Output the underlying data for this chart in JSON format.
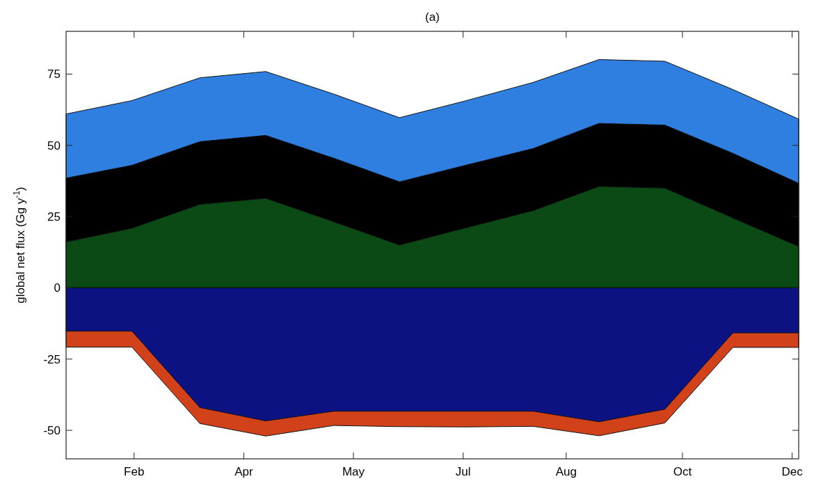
{
  "chart_data": {
    "type": "area",
    "title": "(a)",
    "ylabel": "global net flux (Gg y$^{-1}$)",
    "x": [
      "--01-15",
      "--02-14",
      "--03-17",
      "--04-16",
      "--05-17",
      "--06-16",
      "--07-16",
      "--08-16",
      "--09-15",
      "--10-15",
      "--11-15",
      "--12-15"
    ],
    "xlim": [
      "--01-15",
      "--12-15"
    ],
    "xticks": [
      {
        "value": "--02-15",
        "label": "Feb"
      },
      {
        "value": "--04-06",
        "label": "Apr"
      },
      {
        "value": "--05-26",
        "label": "May"
      },
      {
        "value": "--07-15",
        "label": "Jul"
      },
      {
        "value": "--08-31",
        "label": "Aug"
      },
      {
        "value": "--10-23",
        "label": "Oct"
      },
      {
        "value": "--12-12",
        "label": "Dec"
      }
    ],
    "ylim": [
      -60,
      90
    ],
    "yticks": [
      -50,
      -25,
      0,
      25,
      50,
      75
    ],
    "series": [
      {
        "color": "#2f7fe0",
        "values": [
          61.0,
          65.7,
          73.7,
          75.9,
          68.0,
          59.7,
          65.6,
          72.1,
          80.1,
          79.5,
          69.6,
          59.2
        ]
      },
      {
        "color": "#000000",
        "values": [
          38.5,
          43.0,
          51.3,
          53.5,
          45.5,
          37.2,
          43.0,
          48.9,
          57.7,
          57.1,
          47.2,
          36.7
        ]
      },
      {
        "color": "#0b4a14",
        "values": [
          16.1,
          20.9,
          29.3,
          31.4,
          23.2,
          15.0,
          21.0,
          27.1,
          35.6,
          35.0,
          24.5,
          14.5
        ]
      },
      {
        "color": "#d2421a",
        "values": [
          -20.8,
          -20.8,
          -47.6,
          -52.0,
          -48.3,
          -48.7,
          -48.8,
          -48.6,
          -51.9,
          -47.4,
          -20.9,
          -20.9
        ]
      },
      {
        "color": "#0c1282",
        "values": [
          -15.2,
          -15.2,
          -42.0,
          -46.7,
          -43.3,
          -43.3,
          -43.3,
          -43.3,
          -47.0,
          -42.6,
          -15.8,
          -15.8
        ]
      }
    ]
  }
}
